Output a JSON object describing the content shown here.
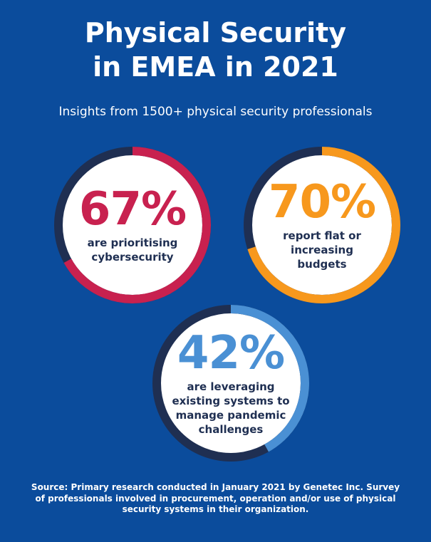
{
  "title_line1": "Physical Security",
  "title_line2": "in EMEA in 2021",
  "subtitle": "Insights from 1500+ physical security professionals",
  "chart_data": {
    "type": "pie",
    "items": [
      {
        "value": 67,
        "value_label": "67%",
        "label": "are prioritising cybersecurity",
        "color": "#c8214f"
      },
      {
        "value": 70,
        "value_label": "70%",
        "label": "report flat or increasing budgets",
        "color": "#f7981d"
      },
      {
        "value": 42,
        "value_label": "42%",
        "label": "are leveraging existing systems to manage pandemic challenges",
        "color": "#4a90d4"
      }
    ],
    "track_color": "#1f2f52"
  },
  "source": "Source: Primary research conducted in January 2021 by Genetec Inc. Survey of professionals involved in procurement, operation and/or use of physical security systems in their organization."
}
